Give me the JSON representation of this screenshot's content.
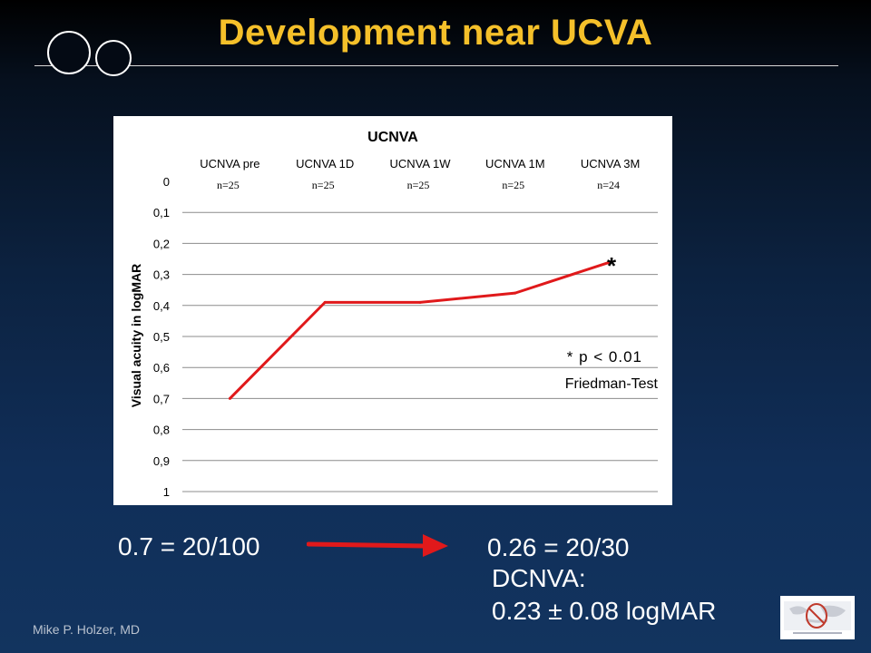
{
  "slide": {
    "title": "Development near UCVA",
    "left_value": "0.7 = 20/100",
    "right_value": "0.26 = 20/30",
    "dcnva_label": "DCNVA:",
    "dcnva_value": "0.23 ± 0.08 logMAR",
    "author": "Mike P. Holzer, MD"
  },
  "colors": {
    "title": "#F5C02A",
    "line": "#E0191B",
    "arrow": "#E0191B",
    "background_top": "#000000",
    "background_bottom": "#12345f"
  },
  "chart_data": {
    "type": "line",
    "title": "UCNVA",
    "ylabel": "Visual acuity in logMAR",
    "xlabel": "",
    "categories": [
      "UCNVA pre",
      "UCNVA 1D",
      "UCNVA 1W",
      "UCNVA 1M",
      "UCNVA 3M"
    ],
    "n_labels": [
      "n=25",
      "n=25",
      "n=25",
      "n=25",
      "n=24"
    ],
    "series": [
      {
        "values": [
          0.7,
          0.39,
          0.39,
          0.36,
          0.26
        ]
      }
    ],
    "ylim": [
      0,
      1
    ],
    "y_inverted": true,
    "y_ticks": [
      0,
      0.1,
      0.2,
      0.3,
      0.4,
      0.5,
      0.6,
      0.7,
      0.8,
      0.9,
      1
    ],
    "y_tick_labels": [
      "0",
      "0,1",
      "0,2",
      "0,3",
      "0,4",
      "0,5",
      "0,6",
      "0,7",
      "0,8",
      "0,9",
      "1"
    ],
    "x_axis_position": "top",
    "grid": true,
    "annotations": {
      "significance_marker": "*",
      "significance_index": 4,
      "stat_line1": "* p < 0.01",
      "stat_line2": "Friedman-Test"
    }
  }
}
